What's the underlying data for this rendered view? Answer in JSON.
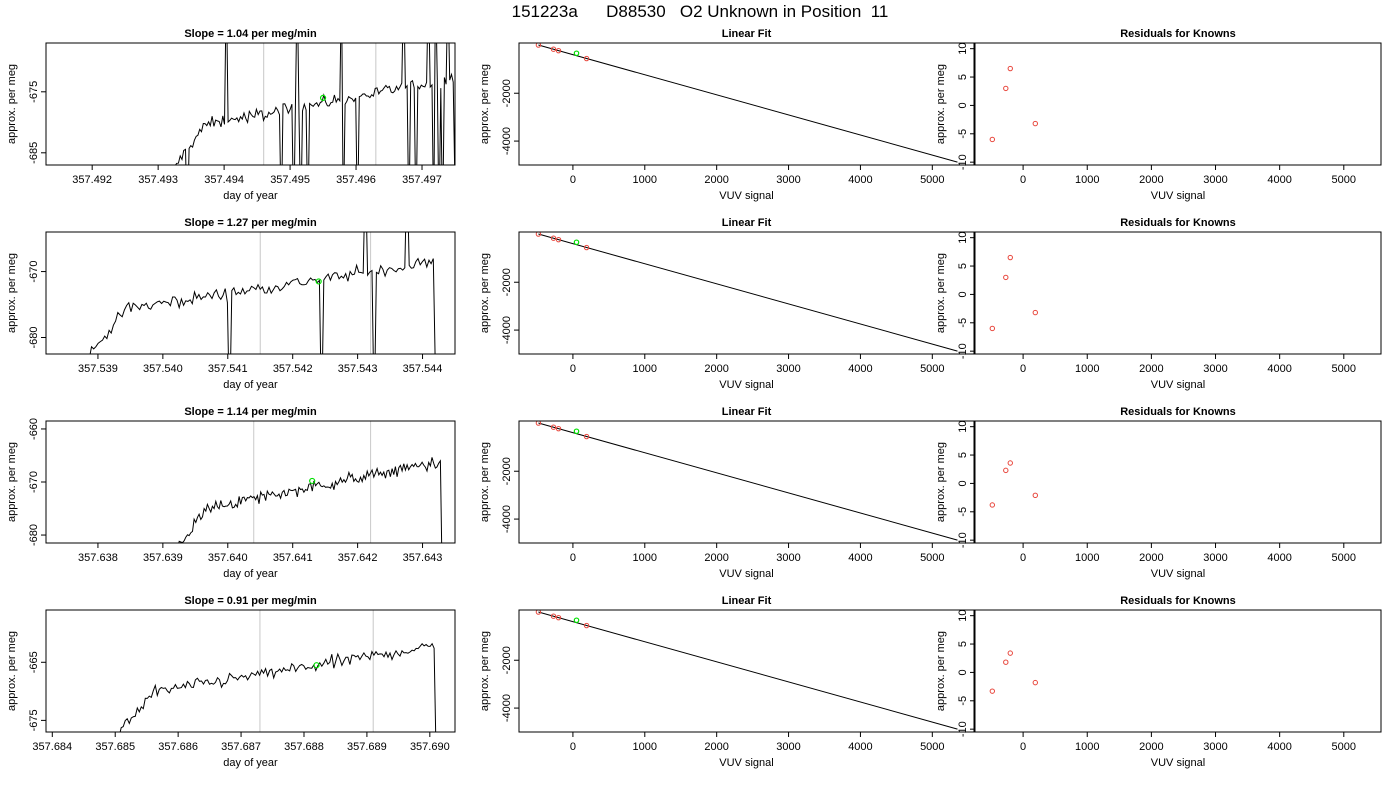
{
  "title": "151223a      D88530   O2 Unknown in Position  11",
  "colors": {
    "line": "#000000",
    "green": "#00e000",
    "red": "#e8463c",
    "vline": "#c8c8c8"
  },
  "chart_data": [
    {
      "row": 0,
      "panels": [
        {
          "type": "line",
          "title": "Slope =  1.04  per meg/min",
          "xlabel": "day of year",
          "ylabel": "approx. per meg",
          "xlim": [
            357.4913,
            357.4975
          ],
          "ylim": [
            -687,
            -667
          ],
          "xticks": [
            "357.492",
            "357.493",
            "357.494",
            "357.495",
            "357.496",
            "357.497"
          ],
          "yticks": [
            "-675",
            "-685"
          ],
          "vlines": [
            357.4946,
            357.4963
          ],
          "series_range": [
            357.4932,
            357.4975
          ],
          "green_point": [
            357.4955,
            -676
          ]
        },
        {
          "type": "fit",
          "title": "Linear Fit",
          "xlabel": "VUV signal",
          "ylabel": "approx. per meg",
          "xlim": [
            -750,
            5580
          ],
          "ylim": [
            -5000,
            100
          ],
          "xticks": [
            "0",
            "1000",
            "2000",
            "3000",
            "4000",
            "5000"
          ],
          "yticks": [
            "-2000",
            "-4000"
          ],
          "fit_line": [
            [
              -480,
              15
            ],
            [
              5350,
              -4880
            ]
          ],
          "knowns": [
            [
              -480,
              15
            ],
            [
              -270,
              -160
            ],
            [
              -200,
              -220
            ],
            [
              190,
              -550
            ]
          ],
          "green_point": [
            50,
            -330
          ]
        },
        {
          "type": "residuals",
          "title": "Residuals for Knowns",
          "xlabel": "VUV signal",
          "ylabel": "approx. per meg",
          "xlim": [
            -750,
            5580
          ],
          "ylim": [
            -10.5,
            11
          ],
          "xticks": [
            "0",
            "1000",
            "2000",
            "3000",
            "4000",
            "5000"
          ],
          "yticks": [
            "10",
            "5",
            "0",
            "-5",
            "-10"
          ],
          "points": [
            [
              -480,
              -6.0
            ],
            [
              -270,
              3.0
            ],
            [
              -200,
              6.5
            ],
            [
              190,
              -3.2
            ]
          ]
        }
      ]
    },
    {
      "row": 1,
      "panels": [
        {
          "type": "line",
          "title": "Slope =  1.27  per meg/min",
          "xlabel": "day of year",
          "ylabel": "approx. per meg",
          "xlim": [
            357.5382,
            357.5445
          ],
          "ylim": [
            -682.5,
            -664
          ],
          "xticks": [
            "357.539",
            "357.540",
            "357.541",
            "357.542",
            "357.543",
            "357.544"
          ],
          "yticks": [
            "-670",
            "-680"
          ],
          "vlines": [
            357.5415,
            357.5432
          ],
          "series_range": [
            357.5388,
            357.5442
          ],
          "green_point": [
            357.5424,
            -671.5
          ]
        },
        {
          "type": "fit",
          "title": "Linear Fit",
          "xlabel": "VUV signal",
          "ylabel": "approx. per meg",
          "xlim": [
            -750,
            5580
          ],
          "ylim": [
            -5000,
            100
          ],
          "xticks": [
            "0",
            "1000",
            "2000",
            "3000",
            "4000",
            "5000"
          ],
          "yticks": [
            "-2000",
            "-4000"
          ],
          "fit_line": [
            [
              -480,
              15
            ],
            [
              5350,
              -4880
            ]
          ],
          "knowns": [
            [
              -480,
              15
            ],
            [
              -270,
              -160
            ],
            [
              -200,
              -220
            ],
            [
              190,
              -550
            ]
          ],
          "green_point": [
            50,
            -330
          ]
        },
        {
          "type": "residuals",
          "title": "Residuals for Knowns",
          "xlabel": "VUV signal",
          "ylabel": "approx. per meg",
          "xlim": [
            -750,
            5580
          ],
          "ylim": [
            -10.5,
            11
          ],
          "xticks": [
            "0",
            "1000",
            "2000",
            "3000",
            "4000",
            "5000"
          ],
          "yticks": [
            "10",
            "5",
            "0",
            "-5",
            "-10"
          ],
          "points": [
            [
              -480,
              -6.0
            ],
            [
              -270,
              3.0
            ],
            [
              -200,
              6.5
            ],
            [
              190,
              -3.2
            ]
          ]
        }
      ]
    },
    {
      "row": 2,
      "panels": [
        {
          "type": "line",
          "title": "Slope =  1.14  per meg/min",
          "xlabel": "day of year",
          "ylabel": "approx. per meg",
          "xlim": [
            357.6372,
            357.6435
          ],
          "ylim": [
            -681.5,
            -658.5
          ],
          "xticks": [
            "357.638",
            "357.639",
            "357.640",
            "357.641",
            "357.642",
            "357.643"
          ],
          "yticks": [
            "-660",
            "-670",
            "-680"
          ],
          "vlines": [
            357.6404,
            357.6422
          ],
          "series_range": [
            357.6392,
            357.6433
          ],
          "green_point": [
            357.6413,
            -669.8
          ]
        },
        {
          "type": "fit",
          "title": "Linear Fit",
          "xlabel": "VUV signal",
          "ylabel": "approx. per meg",
          "xlim": [
            -750,
            5580
          ],
          "ylim": [
            -5000,
            100
          ],
          "xticks": [
            "0",
            "1000",
            "2000",
            "3000",
            "4000",
            "5000"
          ],
          "yticks": [
            "-2000",
            "-4000"
          ],
          "fit_line": [
            [
              -480,
              15
            ],
            [
              5350,
              -4880
            ]
          ],
          "knowns": [
            [
              -480,
              15
            ],
            [
              -270,
              -160
            ],
            [
              -200,
              -220
            ],
            [
              190,
              -550
            ]
          ],
          "green_point": [
            50,
            -330
          ]
        },
        {
          "type": "residuals",
          "title": "Residuals for Knowns",
          "xlabel": "VUV signal",
          "ylabel": "approx. per meg",
          "xlim": [
            -750,
            5580
          ],
          "ylim": [
            -10.5,
            11
          ],
          "xticks": [
            "0",
            "1000",
            "2000",
            "3000",
            "4000",
            "5000"
          ],
          "yticks": [
            "10",
            "5",
            "0",
            "-5",
            "-10"
          ],
          "points": [
            [
              -480,
              -3.8
            ],
            [
              -270,
              2.3
            ],
            [
              -200,
              3.6
            ],
            [
              190,
              -2.1
            ]
          ]
        }
      ]
    },
    {
      "row": 3,
      "panels": [
        {
          "type": "line",
          "title": "Slope =  0.91  per meg/min",
          "xlabel": "day of year",
          "ylabel": "approx. per meg",
          "xlim": [
            357.6839,
            357.6904
          ],
          "ylim": [
            -677,
            -656
          ],
          "xticks": [
            "357.684",
            "357.685",
            "357.686",
            "357.687",
            "357.688",
            "357.689",
            "357.690"
          ],
          "yticks": [
            "-665",
            "-675"
          ],
          "vlines": [
            357.6873,
            357.6891
          ],
          "series_range": [
            357.685,
            357.6901
          ],
          "green_point": [
            357.6882,
            -665.5
          ]
        },
        {
          "type": "fit",
          "title": "Linear Fit",
          "xlabel": "VUV signal",
          "ylabel": "approx. per meg",
          "xlim": [
            -750,
            5580
          ],
          "ylim": [
            -5000,
            100
          ],
          "xticks": [
            "0",
            "1000",
            "2000",
            "3000",
            "4000",
            "5000"
          ],
          "yticks": [
            "-2000",
            "-4000"
          ],
          "fit_line": [
            [
              -480,
              15
            ],
            [
              5350,
              -4880
            ]
          ],
          "knowns": [
            [
              -480,
              15
            ],
            [
              -270,
              -160
            ],
            [
              -200,
              -220
            ],
            [
              190,
              -550
            ]
          ],
          "green_point": [
            50,
            -330
          ]
        },
        {
          "type": "residuals",
          "title": "Residuals for Knowns",
          "xlabel": "VUV signal",
          "ylabel": "approx. per meg",
          "xlim": [
            -750,
            5580
          ],
          "ylim": [
            -10.5,
            11
          ],
          "xticks": [
            "0",
            "1000",
            "2000",
            "3000",
            "4000",
            "5000"
          ],
          "yticks": [
            "10",
            "5",
            "0",
            "-5",
            "-10"
          ],
          "points": [
            [
              -480,
              -3.3
            ],
            [
              -270,
              1.8
            ],
            [
              -200,
              3.4
            ],
            [
              190,
              -1.8
            ]
          ]
        }
      ]
    }
  ]
}
